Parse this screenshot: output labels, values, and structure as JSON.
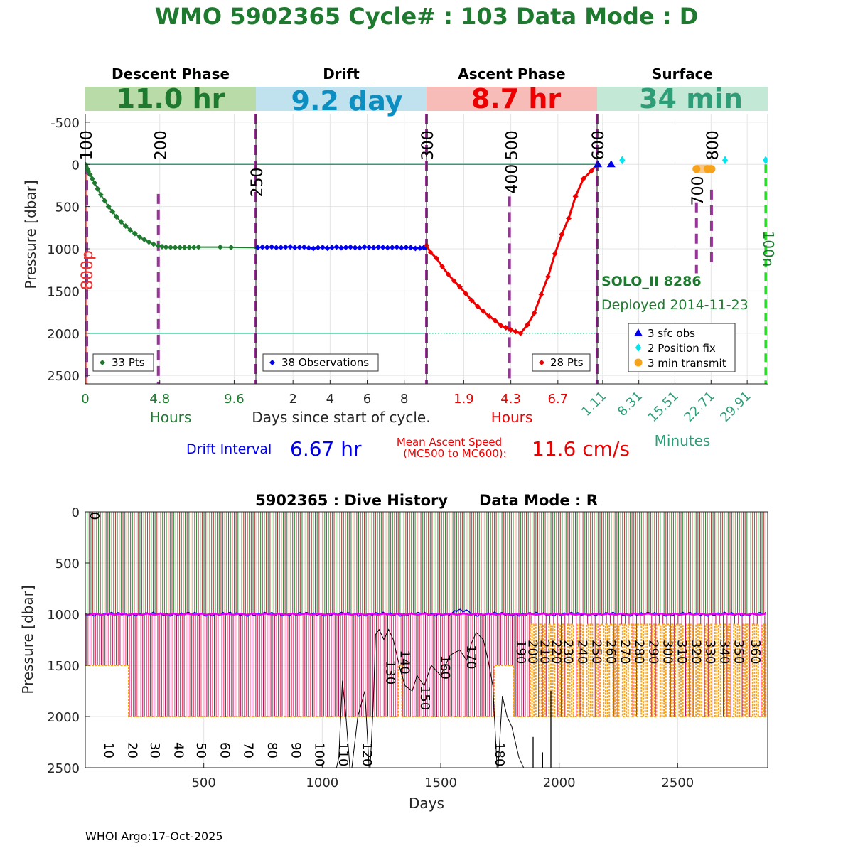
{
  "header": {
    "title": "WMO 5902365   Cycle# : 103   Data Mode : D"
  },
  "colors": {
    "green": "#1e7a2e",
    "blue": "#0000ee",
    "red": "#ee0000",
    "teal": "#2e9e78",
    "purple": "#993399",
    "orange": "#f7a21b",
    "magenta": "#ee00ee",
    "cyan": "#00e5ee",
    "band_descent": "#b8dba8",
    "band_drift": "#bfe2ee",
    "band_ascent": "#f8bcb8",
    "band_surface": "#c4e8d6",
    "band_text_descent": "#1e7a2e",
    "band_text_drift": "#0d8ec0",
    "band_text_ascent": "#ee0000",
    "band_text_surface": "#2e9e78"
  },
  "chart_data": [
    {
      "type": "line",
      "title": "Cycle profile",
      "ylabel": "Pressure [dbar]",
      "ylim": [
        2600,
        -600
      ],
      "y_ticks": [
        "-500",
        "0",
        "500",
        "1000",
        "1500",
        "2000",
        "2500"
      ],
      "y_tick_values": [
        -500,
        0,
        500,
        1000,
        1500,
        2000,
        2500
      ],
      "reference_lines": [
        0,
        2000
      ],
      "phases": [
        {
          "name": "Descent Phase",
          "duration": "11.0 hr",
          "axis_unit": "Hours",
          "ticks": [
            "0",
            "4.8",
            "9.6"
          ],
          "tick_values": [
            0,
            4.8,
            9.6
          ],
          "xlim": [
            0,
            11.0
          ]
        },
        {
          "name": "Drift",
          "duration": "9.2 day",
          "axis_unit": "Days since start of cycle.",
          "ticks": [
            "2",
            "4",
            "6",
            "8"
          ],
          "tick_values": [
            2,
            4,
            6,
            8
          ],
          "xlim": [
            0,
            9.2
          ]
        },
        {
          "name": "Ascent Phase",
          "duration": "8.7 hr",
          "axis_unit": "Hours",
          "ticks": [
            "1.9",
            "4.3",
            "6.7"
          ],
          "tick_values": [
            1.9,
            4.3,
            6.7
          ],
          "xlim": [
            0,
            8.7
          ]
        },
        {
          "name": "Surface",
          "duration": "34 min",
          "axis_unit": "Minutes",
          "ticks": [
            "1.11",
            "8.31",
            "15.51",
            "22.71",
            "29.91"
          ],
          "tick_values": [
            1.11,
            8.31,
            15.51,
            22.71,
            29.91
          ],
          "xlim": [
            0,
            34
          ]
        }
      ],
      "descent": {
        "legend": "33 Pts",
        "x_hours": [
          0,
          0.05,
          0.12,
          0.2,
          0.3,
          0.45,
          0.6,
          0.8,
          1.0,
          1.25,
          1.5,
          1.75,
          2.0,
          2.3,
          2.6,
          2.9,
          3.2,
          3.5,
          3.8,
          4.1,
          4.4,
          4.7,
          4.95,
          5.2,
          5.5,
          5.8,
          6.1,
          6.4,
          6.7,
          7.0,
          7.3,
          8.7,
          9.4
        ],
        "pressure": [
          0,
          20,
          50,
          80,
          120,
          170,
          220,
          290,
          360,
          430,
          500,
          560,
          620,
          680,
          730,
          780,
          820,
          860,
          890,
          920,
          945,
          965,
          975,
          980,
          982,
          983,
          983,
          983,
          983,
          982,
          980,
          980,
          982
        ]
      },
      "drift": {
        "legend": "38 Observations",
        "x_days": [
          0.1,
          0.35,
          0.6,
          0.85,
          1.1,
          1.35,
          1.6,
          1.85,
          2.1,
          2.35,
          2.6,
          2.85,
          3.1,
          3.35,
          3.6,
          3.85,
          4.1,
          4.35,
          4.6,
          4.85,
          5.1,
          5.35,
          5.6,
          5.85,
          6.1,
          6.35,
          6.6,
          6.85,
          7.1,
          7.35,
          7.6,
          7.85,
          8.1,
          8.35,
          8.6,
          8.85,
          9.05,
          9.15
        ],
        "pressure": [
          985,
          980,
          982,
          978,
          985,
          983,
          980,
          977,
          985,
          982,
          980,
          988,
          995,
          985,
          982,
          992,
          985,
          978,
          988,
          983,
          980,
          985,
          987,
          978,
          982,
          985,
          980,
          982,
          986,
          983,
          980,
          987,
          982,
          985,
          995,
          990,
          985,
          982
        ]
      },
      "ascent": {
        "legend": "28 Pts",
        "x_hours": [
          0,
          0.2,
          0.5,
          0.8,
          1.1,
          1.4,
          1.7,
          2.0,
          2.3,
          2.6,
          2.9,
          3.2,
          3.5,
          3.8,
          4.05,
          4.3,
          4.55,
          4.8,
          5.15,
          5.5,
          5.85,
          6.2,
          6.55,
          6.9,
          7.25,
          7.6,
          8.0,
          8.4
        ],
        "pressure": [
          960,
          1040,
          1110,
          1210,
          1300,
          1380,
          1450,
          1530,
          1610,
          1680,
          1740,
          1800,
          1850,
          1910,
          1935,
          1960,
          1980,
          2000,
          1900,
          1760,
          1540,
          1330,
          1060,
          830,
          640,
          380,
          170,
          80
        ]
      },
      "surface": {
        "legend": [
          "3 sfc obs",
          "2 Position fix",
          "3 min transmit"
        ],
        "sfc_obs_minutes": [
          0.2,
          2.8
        ],
        "position_fix_minutes": [
          5.0,
          25.5
        ],
        "transmit_minutes": [
          19.8,
          22.0,
          22.8
        ]
      },
      "mc_labels": [
        {
          "label": "100",
          "phase": 0,
          "x": 0,
          "pressure": 0
        },
        {
          "label": "200",
          "phase": 0,
          "x": 4.8,
          "pressure": 0
        },
        {
          "label": "250",
          "phase": 1,
          "x": 0,
          "pressure": 440
        },
        {
          "label": "300",
          "phase": 2,
          "x": 0,
          "pressure": 0
        },
        {
          "label": "400",
          "phase": 2,
          "x": 4.3,
          "pressure": 400
        },
        {
          "label": "500",
          "phase": 2,
          "x": 4.3,
          "pressure": 0
        },
        {
          "label": "600",
          "phase": 3,
          "x": 0,
          "pressure": 0
        },
        {
          "label": "700",
          "phase": 3,
          "x": 19.8,
          "pressure": 540
        },
        {
          "label": "800",
          "phase": 3,
          "x": 22.8,
          "pressure": 0
        }
      ],
      "side_labels": {
        "left": "800p",
        "right": "100n"
      },
      "float_info": {
        "model": "SOLO_II 8286",
        "deployed": "Deployed 2014-11-23"
      }
    },
    {
      "type": "line",
      "title": "5902365 : Dive History      Data Mode : R",
      "xlabel": "Days",
      "ylabel": "Pressure [dbar]",
      "xlim": [
        0,
        2880
      ],
      "ylim": [
        2500,
        0
      ],
      "x_ticks": [
        "500",
        "1000",
        "1500",
        "2000",
        "2500"
      ],
      "x_tick_values": [
        500,
        1000,
        1500,
        2000,
        2500
      ],
      "y_ticks": [
        "0",
        "500",
        "1000",
        "1500",
        "2000",
        "2500"
      ],
      "y_tick_values": [
        0,
        500,
        1000,
        1500,
        2000,
        2500
      ],
      "n_cycles": 362,
      "cycle_period_days": 10,
      "drift_pressure": 1000,
      "profile_pressure_schedule": [
        {
          "from_day": 0,
          "to_day": 178,
          "pressure": 1500
        },
        {
          "from_day": 178,
          "to_day": 1320,
          "pressure": 2000
        },
        {
          "from_day": 1320,
          "to_day": 1335,
          "pressure": 1500
        },
        {
          "from_day": 1335,
          "to_day": 1720,
          "pressure": 2000
        },
        {
          "from_day": 1720,
          "to_day": 1800,
          "pressure": 1500
        },
        {
          "from_day": 1800,
          "to_day": 1870,
          "pressure": 2000
        }
      ],
      "cycle_labels": [
        "0",
        "10",
        "20",
        "30",
        "40",
        "50",
        "60",
        "70",
        "80",
        "90",
        "100",
        "110",
        "120",
        "130",
        "140",
        "150",
        "160",
        "170",
        "180",
        "190",
        "200",
        "210",
        "220",
        "230",
        "240",
        "250",
        "260",
        "270",
        "280",
        "290",
        "300",
        "310",
        "320",
        "330",
        "340",
        "350",
        "360"
      ],
      "cycle_label_days": [
        0,
        60,
        160,
        255,
        355,
        450,
        550,
        650,
        750,
        850,
        950,
        1050,
        1150,
        1250,
        1310,
        1395,
        1480,
        1590,
        1710,
        1800,
        1850,
        1900,
        1950,
        2000,
        2060,
        2120,
        2180,
        2240,
        2300,
        2360,
        2420,
        2480,
        2540,
        2600,
        2660,
        2720,
        2790
      ],
      "cycle_label_pressures": [
        0,
        2250,
        2250,
        2250,
        2250,
        2250,
        2250,
        2250,
        2250,
        2250,
        2250,
        2250,
        2250,
        1450,
        1350,
        1700,
        1400,
        1300,
        2250,
        1250,
        1250,
        1250,
        1250,
        1250,
        1250,
        1250,
        1250,
        1250,
        1250,
        1250,
        1250,
        1250,
        1250,
        1250,
        1250,
        1250,
        1250
      ],
      "bathymetry": {
        "days": [
          1050,
          1070,
          1085,
          1100,
          1120,
          1150,
          1180,
          1200,
          1215,
          1225,
          1240,
          1260,
          1280,
          1300,
          1330,
          1350,
          1380,
          1400,
          1430,
          1460,
          1500,
          1540,
          1580,
          1610,
          1630,
          1650,
          1680,
          1700,
          1720,
          1740,
          1760,
          1780,
          1800,
          1830,
          1870
        ],
        "depth": [
          2600,
          2400,
          1650,
          2000,
          2600,
          2000,
          1750,
          2600,
          1900,
          1200,
          1150,
          1250,
          1150,
          1250,
          1550,
          1700,
          1750,
          1600,
          1700,
          1500,
          1600,
          1400,
          1350,
          1450,
          1280,
          1180,
          1250,
          1450,
          1700,
          2600,
          1800,
          2000,
          2100,
          2400,
          2600
        ]
      }
    }
  ],
  "footer": {
    "credit": "WHOI Argo:17-Oct-2025"
  }
}
